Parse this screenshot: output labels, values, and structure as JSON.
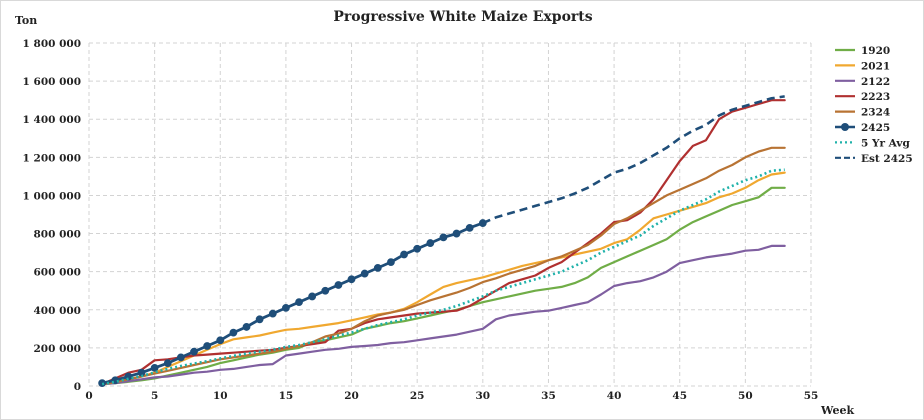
{
  "chart_data": {
    "type": "line",
    "title": "Progressive White Maize Exports",
    "ylabel": "Ton",
    "xlabel": "Week",
    "xlim": [
      0,
      55
    ],
    "ylim": [
      0,
      1800000
    ],
    "x_ticks": [
      0,
      5,
      10,
      15,
      20,
      25,
      30,
      35,
      40,
      45,
      50,
      55
    ],
    "x_tick_labels": [
      "0",
      "5",
      "10",
      "15",
      "20",
      "25",
      "30",
      "35",
      "40",
      "45",
      "50",
      "55"
    ],
    "y_ticks": [
      0,
      200000,
      400000,
      600000,
      800000,
      1000000,
      1200000,
      1400000,
      1600000,
      1800000
    ],
    "y_tick_labels": [
      "0",
      "200 000",
      "400 000",
      "600 000",
      "800 000",
      "1 000 000",
      "1 200 000",
      "1 400 000",
      "1 600 000",
      "1 800 000"
    ],
    "grid": true,
    "legend_position": "right",
    "series": [
      {
        "name": "1920",
        "color": "#70ad47",
        "style": "solid",
        "marker": false,
        "x": [
          1,
          2,
          3,
          4,
          5,
          6,
          7,
          8,
          9,
          10,
          11,
          12,
          13,
          14,
          15,
          16,
          17,
          18,
          19,
          20,
          21,
          22,
          23,
          24,
          25,
          26,
          27,
          28,
          29,
          30,
          31,
          32,
          33,
          34,
          35,
          36,
          37,
          38,
          39,
          40,
          41,
          42,
          43,
          44,
          45,
          46,
          47,
          48,
          49,
          50,
          51,
          52,
          53
        ],
        "y": [
          10000,
          15000,
          22000,
          30000,
          40000,
          55000,
          70000,
          85000,
          100000,
          120000,
          135000,
          150000,
          165000,
          175000,
          190000,
          200000,
          230000,
          240000,
          255000,
          270000,
          300000,
          315000,
          330000,
          340000,
          355000,
          370000,
          385000,
          400000,
          420000,
          440000,
          455000,
          470000,
          485000,
          500000,
          510000,
          520000,
          540000,
          570000,
          620000,
          650000,
          680000,
          710000,
          740000,
          770000,
          820000,
          860000,
          890000,
          920000,
          950000,
          970000,
          990000,
          1040000,
          1040000
        ]
      },
      {
        "name": "2021",
        "color": "#f0a830",
        "style": "solid",
        "marker": false,
        "x": [
          1,
          2,
          3,
          4,
          5,
          6,
          7,
          8,
          9,
          10,
          11,
          12,
          13,
          14,
          15,
          16,
          17,
          18,
          19,
          20,
          21,
          22,
          23,
          24,
          25,
          26,
          27,
          28,
          29,
          30,
          31,
          32,
          33,
          34,
          35,
          36,
          37,
          38,
          39,
          40,
          41,
          42,
          43,
          44,
          45,
          46,
          47,
          48,
          49,
          50,
          51,
          52,
          53
        ],
        "y": [
          10000,
          20000,
          35000,
          50000,
          70000,
          100000,
          130000,
          160000,
          190000,
          220000,
          245000,
          255000,
          265000,
          280000,
          295000,
          300000,
          310000,
          320000,
          330000,
          345000,
          360000,
          375000,
          385000,
          405000,
          440000,
          480000,
          520000,
          540000,
          555000,
          570000,
          590000,
          610000,
          630000,
          645000,
          660000,
          675000,
          690000,
          705000,
          720000,
          750000,
          770000,
          820000,
          880000,
          900000,
          920000,
          940000,
          960000,
          990000,
          1010000,
          1040000,
          1080000,
          1110000,
          1120000
        ]
      },
      {
        "name": "2122",
        "color": "#7f5fa0",
        "style": "solid",
        "marker": false,
        "x": [
          1,
          2,
          3,
          4,
          5,
          6,
          7,
          8,
          9,
          10,
          11,
          12,
          13,
          14,
          15,
          16,
          17,
          18,
          19,
          20,
          21,
          22,
          23,
          24,
          25,
          26,
          27,
          28,
          29,
          30,
          31,
          32,
          33,
          34,
          35,
          36,
          37,
          38,
          39,
          40,
          41,
          42,
          43,
          44,
          45,
          46,
          47,
          48,
          49,
          50,
          51,
          52,
          53
        ],
        "y": [
          10000,
          15000,
          25000,
          35000,
          45000,
          50000,
          60000,
          70000,
          75000,
          85000,
          90000,
          100000,
          110000,
          115000,
          160000,
          170000,
          180000,
          190000,
          195000,
          205000,
          210000,
          215000,
          225000,
          230000,
          240000,
          250000,
          260000,
          270000,
          285000,
          300000,
          350000,
          370000,
          380000,
          390000,
          395000,
          410000,
          425000,
          440000,
          480000,
          525000,
          540000,
          550000,
          570000,
          600000,
          645000,
          660000,
          675000,
          685000,
          695000,
          710000,
          715000,
          735000,
          735000
        ]
      },
      {
        "name": "2223",
        "color": "#b03030",
        "style": "solid",
        "marker": false,
        "x": [
          1,
          2,
          3,
          4,
          5,
          6,
          7,
          8,
          9,
          10,
          11,
          12,
          13,
          14,
          15,
          16,
          17,
          18,
          19,
          20,
          21,
          22,
          23,
          24,
          25,
          26,
          27,
          28,
          29,
          30,
          31,
          32,
          33,
          34,
          35,
          36,
          37,
          38,
          39,
          40,
          41,
          42,
          43,
          44,
          45,
          46,
          47,
          48,
          49,
          50,
          51,
          52,
          53
        ],
        "y": [
          10000,
          40000,
          70000,
          85000,
          135000,
          140000,
          150000,
          160000,
          165000,
          170000,
          175000,
          180000,
          185000,
          190000,
          200000,
          210000,
          220000,
          230000,
          290000,
          300000,
          330000,
          350000,
          360000,
          370000,
          380000,
          385000,
          390000,
          395000,
          420000,
          460000,
          500000,
          540000,
          560000,
          580000,
          620000,
          650000,
          700000,
          750000,
          800000,
          860000,
          870000,
          910000,
          980000,
          1080000,
          1180000,
          1260000,
          1290000,
          1400000,
          1440000,
          1460000,
          1480000,
          1500000,
          1500000
        ]
      },
      {
        "name": "2324",
        "color": "#b87333",
        "style": "solid",
        "marker": false,
        "x": [
          1,
          2,
          3,
          4,
          5,
          6,
          7,
          8,
          9,
          10,
          11,
          12,
          13,
          14,
          15,
          16,
          17,
          18,
          19,
          20,
          21,
          22,
          23,
          24,
          25,
          26,
          27,
          28,
          29,
          30,
          31,
          32,
          33,
          34,
          35,
          36,
          37,
          38,
          39,
          40,
          41,
          42,
          43,
          44,
          45,
          46,
          47,
          48,
          49,
          50,
          51,
          52,
          53
        ],
        "y": [
          10000,
          20000,
          35000,
          50000,
          65000,
          80000,
          95000,
          110000,
          125000,
          140000,
          150000,
          160000,
          170000,
          180000,
          195000,
          210000,
          230000,
          260000,
          275000,
          300000,
          340000,
          370000,
          385000,
          400000,
          425000,
          450000,
          470000,
          490000,
          515000,
          545000,
          565000,
          590000,
          610000,
          630000,
          660000,
          680000,
          710000,
          740000,
          790000,
          850000,
          880000,
          920000,
          960000,
          1000000,
          1030000,
          1060000,
          1090000,
          1130000,
          1160000,
          1200000,
          1230000,
          1250000,
          1250000
        ]
      },
      {
        "name": "2425",
        "color": "#1f4e79",
        "style": "solid",
        "marker": true,
        "x": [
          1,
          2,
          3,
          4,
          5,
          6,
          7,
          8,
          9,
          10,
          11,
          12,
          13,
          14,
          15,
          16,
          17,
          18,
          19,
          20,
          21,
          22,
          23,
          24,
          25,
          26,
          27,
          28,
          29,
          30
        ],
        "y": [
          15000,
          30000,
          50000,
          70000,
          95000,
          120000,
          150000,
          180000,
          210000,
          240000,
          280000,
          310000,
          350000,
          380000,
          410000,
          440000,
          470000,
          500000,
          530000,
          560000,
          590000,
          620000,
          650000,
          690000,
          720000,
          750000,
          780000,
          800000,
          830000,
          855000
        ]
      },
      {
        "name": "5 Yr Avg",
        "color": "#20b2aa",
        "style": "dotted",
        "marker": false,
        "x": [
          1,
          2,
          3,
          4,
          5,
          6,
          7,
          8,
          9,
          10,
          11,
          12,
          13,
          14,
          15,
          16,
          17,
          18,
          19,
          20,
          21,
          22,
          23,
          24,
          25,
          26,
          27,
          28,
          29,
          30,
          31,
          32,
          33,
          34,
          35,
          36,
          37,
          38,
          39,
          40,
          41,
          42,
          43,
          44,
          45,
          46,
          47,
          48,
          49,
          50,
          51,
          52,
          53
        ],
        "y": [
          10000,
          22000,
          38000,
          52000,
          72000,
          90000,
          105000,
          118000,
          130000,
          145000,
          158000,
          170000,
          180000,
          190000,
          205000,
          215000,
          230000,
          245000,
          265000,
          280000,
          300000,
          320000,
          335000,
          350000,
          370000,
          385000,
          400000,
          420000,
          445000,
          470000,
          500000,
          520000,
          540000,
          560000,
          580000,
          600000,
          630000,
          660000,
          700000,
          730000,
          760000,
          790000,
          840000,
          880000,
          920000,
          950000,
          980000,
          1020000,
          1050000,
          1080000,
          1100000,
          1130000,
          1135000
        ]
      },
      {
        "name": "Est 2425",
        "color": "#1f4e79",
        "style": "dashed",
        "marker": false,
        "x": [
          30,
          31,
          32,
          33,
          34,
          35,
          36,
          37,
          38,
          39,
          40,
          41,
          42,
          43,
          44,
          45,
          46,
          47,
          48,
          49,
          50,
          51,
          52,
          53
        ],
        "y": [
          855000,
          885000,
          905000,
          925000,
          945000,
          965000,
          985000,
          1010000,
          1040000,
          1080000,
          1120000,
          1140000,
          1170000,
          1210000,
          1250000,
          1300000,
          1340000,
          1370000,
          1420000,
          1450000,
          1470000,
          1490000,
          1510000,
          1520000
        ]
      }
    ]
  }
}
